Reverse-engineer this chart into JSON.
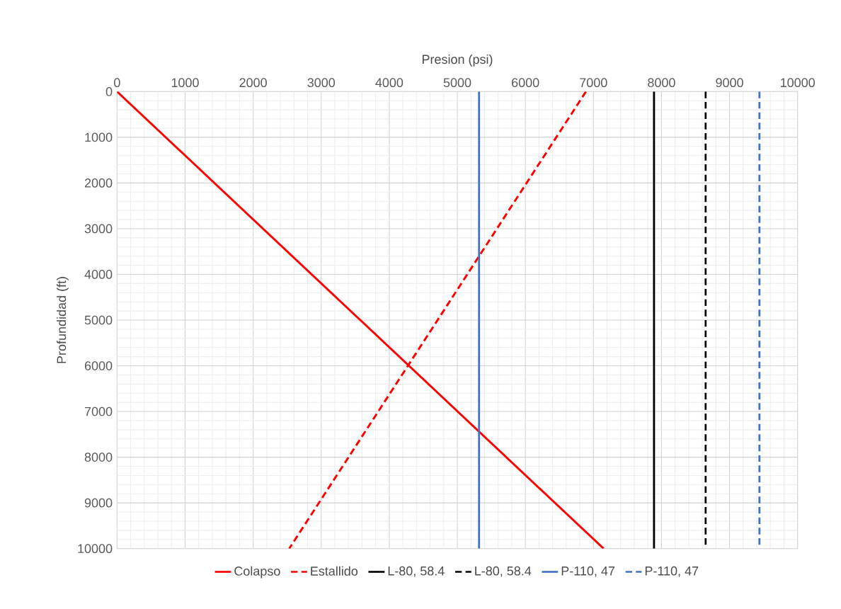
{
  "chart_data": {
    "type": "line",
    "xlabel": "Presion (psi)",
    "ylabel": "Profundidad (ft)",
    "xlim": [
      0,
      10000
    ],
    "xticks": [
      0,
      1000,
      2000,
      3000,
      4000,
      5000,
      6000,
      7000,
      8000,
      9000,
      10000
    ],
    "ylim": [
      10000,
      0
    ],
    "yticks": [
      0,
      1000,
      2000,
      3000,
      4000,
      5000,
      6000,
      7000,
      8000,
      9000,
      10000
    ],
    "grid": true,
    "legend": "bottom",
    "marker": "none",
    "series": [
      {
        "name": "Colapso",
        "color": "#ff0000",
        "line_style": "solid",
        "x": [
          0,
          7150
        ],
        "values": [
          0,
          10000
        ]
      },
      {
        "name": "Estallido",
        "color": "#ff0000",
        "line_style": "dashed",
        "x": [
          6890,
          2530
        ],
        "values": [
          0,
          10000
        ]
      },
      {
        "name": "L-80, 58.4",
        "color": "#000000",
        "line_style": "solid",
        "x": [
          7890,
          7890
        ],
        "values": [
          0,
          10000
        ]
      },
      {
        "name": "L-80, 58.4",
        "color": "#000000",
        "line_style": "dashed",
        "x": [
          8650,
          8650
        ],
        "values": [
          0,
          10000
        ]
      },
      {
        "name": "P-110, 47",
        "color": "#4472c4",
        "line_style": "solid",
        "x": [
          5320,
          5320
        ],
        "values": [
          0,
          10000
        ]
      },
      {
        "name": "P-110, 47",
        "color": "#4472c4",
        "line_style": "dashed",
        "x": [
          9440,
          9440
        ],
        "values": [
          0,
          10000
        ]
      }
    ]
  }
}
